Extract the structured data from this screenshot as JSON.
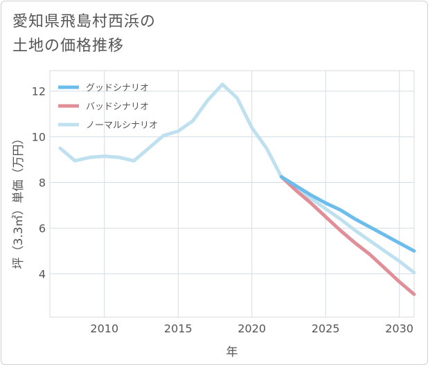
{
  "title_lines": [
    "愛知県飛島村西浜の",
    "土地の価格推移"
  ],
  "chart_data": {
    "type": "line",
    "xlabel": "年",
    "ylabel": "坪（3.3㎡）単価（万円）",
    "xlim": [
      2006.3,
      2031
    ],
    "ylim": [
      2.1,
      12.9
    ],
    "xticks": [
      2010,
      2015,
      2020,
      2025,
      2030
    ],
    "yticks": [
      4,
      6,
      8,
      10,
      12
    ],
    "grid": true,
    "legend_position": "top-left",
    "series": [
      {
        "name": "グッドシナリオ",
        "color": "#6cbcec",
        "x": [
          2022,
          2023,
          2024,
          2025,
          2026,
          2027,
          2028,
          2029,
          2030,
          2031
        ],
        "y": [
          8.25,
          7.85,
          7.45,
          7.1,
          6.8,
          6.4,
          6.05,
          5.7,
          5.35,
          5.0
        ]
      },
      {
        "name": "バッドシナリオ",
        "color": "#e08f98",
        "x": [
          2022,
          2023,
          2024,
          2025,
          2026,
          2027,
          2028,
          2029,
          2030,
          2031
        ],
        "y": [
          8.25,
          7.65,
          7.1,
          6.5,
          5.9,
          5.35,
          4.85,
          4.25,
          3.65,
          3.1
        ]
      },
      {
        "name": "ノーマルシナリオ",
        "color": "#bfe1ef",
        "x": [
          2007,
          2008,
          2009,
          2010,
          2011,
          2012,
          2013,
          2014,
          2015,
          2016,
          2017,
          2018,
          2019,
          2020,
          2021,
          2022,
          2023,
          2024,
          2025,
          2026,
          2027,
          2028,
          2029,
          2030,
          2031
        ],
        "y": [
          9.5,
          8.95,
          9.1,
          9.15,
          9.1,
          8.95,
          9.5,
          10.05,
          10.25,
          10.7,
          11.6,
          12.3,
          11.7,
          10.4,
          9.5,
          8.25,
          7.75,
          7.3,
          6.85,
          6.4,
          5.9,
          5.45,
          5.0,
          4.55,
          4.05
        ]
      }
    ]
  }
}
